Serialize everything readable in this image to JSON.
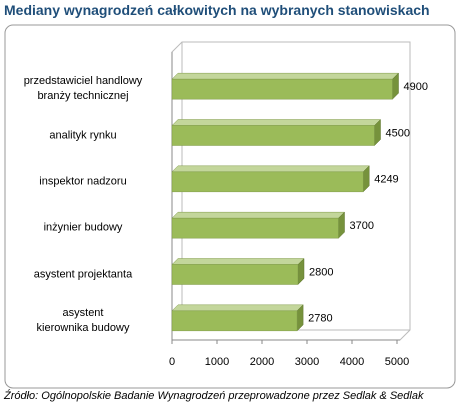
{
  "chart_data": {
    "type": "barh",
    "title": "Mediany wynagrodzeń całkowitych na wybranych stanowiskach",
    "categories": [
      "przedstawiciel handlowy\nbranży technicznej",
      "analityk rynku",
      "inspektor nadzoru",
      "inżynier budowy",
      "asystent projektanta",
      "asystent\nkierownika budowy"
    ],
    "values": [
      4900,
      4500,
      4249,
      3700,
      2800,
      2780
    ],
    "color": "#9bbb59",
    "xlim": [
      0,
      5000
    ],
    "xticks": [
      0,
      1000,
      2000,
      3000,
      4000,
      5000
    ],
    "source": "Źródło: Ogólnopolskie Badanie Wynagrodzeń przeprowadzone przez Sedlak & Sedlak"
  }
}
